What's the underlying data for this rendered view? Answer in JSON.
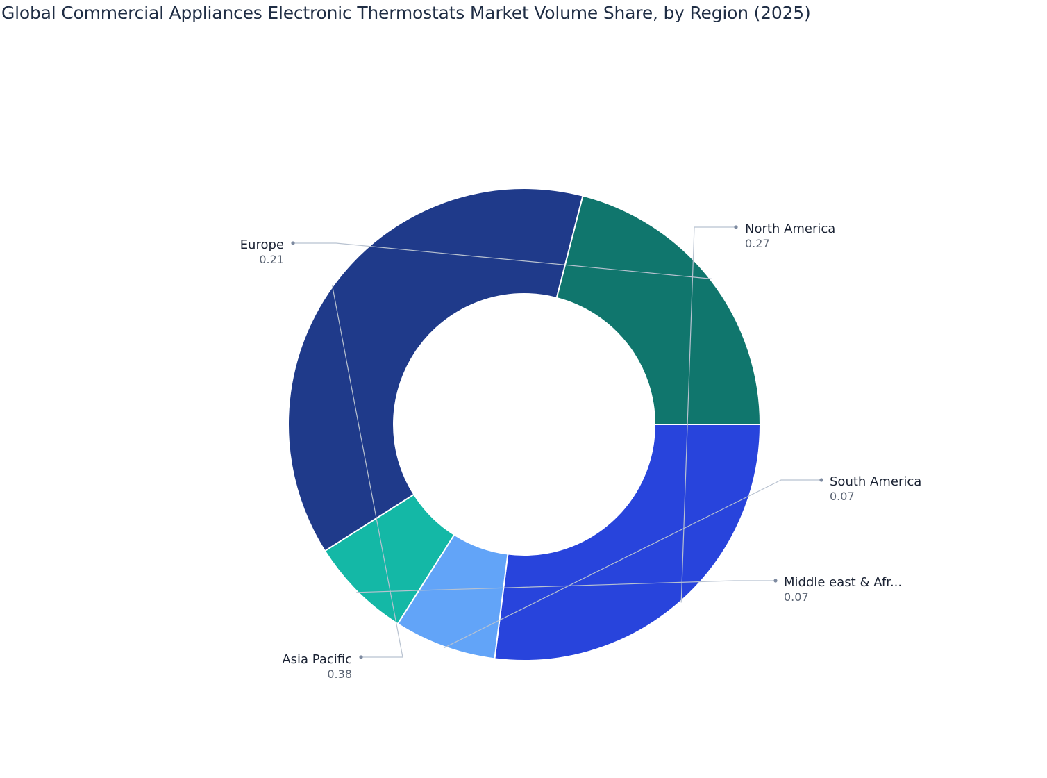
{
  "title": "Global Commercial Appliances Electronic Thermostats Market Volume Share, by Region (2025)",
  "chart_data": {
    "type": "pie",
    "hole": true,
    "title": "Global Commercial Appliances Electronic Thermostats Market Volume Share, by Region (2025)",
    "slices": [
      {
        "label": "North America",
        "display_label": "North America",
        "value": 0.27,
        "value_label": "0.27",
        "color": "#2844dc"
      },
      {
        "label": "South America",
        "display_label": "South America",
        "value": 0.07,
        "value_label": "0.07",
        "color": "#62a4f8"
      },
      {
        "label": "Middle east & Africa",
        "display_label": "Middle east & Afr...",
        "value": 0.07,
        "value_label": "0.07",
        "color": "#14b8a6"
      },
      {
        "label": "Asia Pacific",
        "display_label": "Asia Pacific",
        "value": 0.38,
        "value_label": "0.38",
        "color": "#1f3a8a"
      },
      {
        "label": "Europe",
        "display_label": "Europe",
        "value": 0.21,
        "value_label": "0.21",
        "color": "#10766d"
      }
    ]
  }
}
